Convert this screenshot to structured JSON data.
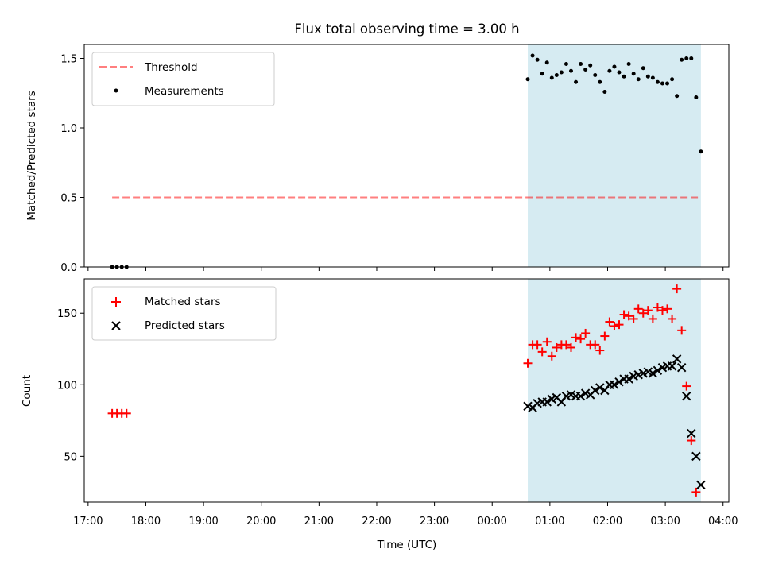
{
  "chart_data": [
    {
      "type": "scatter",
      "title": "Flux total observing time = 3.00 h",
      "xlabel": "",
      "ylabel": "Matched/Predicted stars",
      "ylim": [
        0,
        1.6
      ],
      "yticks": [
        "0.0",
        "0.5",
        "1.0",
        "1.5"
      ],
      "xlim": [
        "16:56",
        "04:06"
      ],
      "observing_window": [
        "00:37",
        "03:37"
      ],
      "observing_window_color": "#add8e6",
      "threshold": {
        "name": "Threshold",
        "y": 0.5,
        "x": [
          "17:25",
          "03:37"
        ],
        "color": "#ff0000"
      },
      "series": [
        {
          "name": "Measurements",
          "color": "#000000",
          "marker": "dot",
          "x": [
            "17:25",
            "17:30",
            "17:35",
            "17:40",
            "00:37",
            "00:42",
            "00:47",
            "00:52",
            "00:57",
            "01:02",
            "01:07",
            "01:12",
            "01:17",
            "01:22",
            "01:27",
            "01:32",
            "01:37",
            "01:42",
            "01:47",
            "01:52",
            "01:57",
            "02:02",
            "02:07",
            "02:12",
            "02:17",
            "02:22",
            "02:27",
            "02:32",
            "02:37",
            "02:42",
            "02:47",
            "02:52",
            "02:57",
            "03:02",
            "03:07",
            "03:12",
            "03:17",
            "03:22",
            "03:27",
            "03:32",
            "03:37"
          ],
          "y": [
            0,
            0,
            0,
            0,
            1.35,
            1.52,
            1.49,
            1.39,
            1.47,
            1.36,
            1.38,
            1.4,
            1.46,
            1.41,
            1.33,
            1.46,
            1.42,
            1.45,
            1.38,
            1.33,
            1.26,
            1.41,
            1.44,
            1.4,
            1.37,
            1.46,
            1.39,
            1.35,
            1.43,
            1.37,
            1.36,
            1.33,
            1.32,
            1.32,
            1.35,
            1.23,
            1.49,
            1.5,
            1.5,
            1.22,
            0.83
          ]
        }
      ],
      "legend": {
        "position": "top-left",
        "entries": [
          "Threshold",
          "Measurements"
        ]
      }
    },
    {
      "type": "scatter",
      "title": "",
      "xlabel": "Time (UTC)",
      "ylabel": "Count",
      "ylim": [
        18,
        174
      ],
      "yticks": [
        "50",
        "100",
        "150"
      ],
      "xlim": [
        "16:56",
        "04:06"
      ],
      "xticks": [
        "17:00",
        "18:00",
        "19:00",
        "20:00",
        "21:00",
        "22:00",
        "23:00",
        "00:00",
        "01:00",
        "02:00",
        "03:00",
        "04:00"
      ],
      "observing_window": [
        "00:37",
        "03:37"
      ],
      "observing_window_color": "#add8e6",
      "series": [
        {
          "name": "Matched stars",
          "color": "#ff0000",
          "marker": "plus",
          "x": [
            "17:25",
            "17:30",
            "17:35",
            "17:40",
            "00:37",
            "00:42",
            "00:47",
            "00:52",
            "00:57",
            "01:02",
            "01:07",
            "01:12",
            "01:17",
            "01:22",
            "01:27",
            "01:32",
            "01:37",
            "01:42",
            "01:47",
            "01:52",
            "01:57",
            "02:02",
            "02:07",
            "02:12",
            "02:17",
            "02:22",
            "02:27",
            "02:32",
            "02:37",
            "02:42",
            "02:47",
            "02:52",
            "02:57",
            "03:02",
            "03:07",
            "03:12",
            "03:17",
            "03:22",
            "03:27",
            "03:32",
            "03:37"
          ],
          "y": [
            80,
            80,
            80,
            80,
            115,
            128,
            128,
            123,
            130,
            120,
            126,
            128,
            128,
            126,
            133,
            132,
            136,
            128,
            128,
            124,
            134,
            144,
            141,
            142,
            149,
            148,
            146,
            153,
            150,
            152,
            146,
            154,
            152,
            153,
            146,
            167,
            138,
            99,
            61,
            25,
            null
          ]
        },
        {
          "name": "Predicted stars",
          "color": "#000000",
          "marker": "x",
          "x": [
            "00:37",
            "00:42",
            "00:47",
            "00:52",
            "00:57",
            "01:02",
            "01:07",
            "01:12",
            "01:17",
            "01:22",
            "01:27",
            "01:32",
            "01:37",
            "01:42",
            "01:47",
            "01:52",
            "01:57",
            "02:02",
            "02:07",
            "02:12",
            "02:17",
            "02:22",
            "02:27",
            "02:32",
            "02:37",
            "02:42",
            "02:47",
            "02:52",
            "02:57",
            "03:02",
            "03:07",
            "03:12",
            "03:17",
            "03:22",
            "03:27",
            "03:32",
            "03:37"
          ],
          "y": [
            85,
            84,
            87,
            88,
            88,
            90,
            91,
            88,
            92,
            93,
            92,
            92,
            94,
            93,
            96,
            98,
            96,
            100,
            100,
            102,
            104,
            104,
            106,
            107,
            108,
            109,
            108,
            110,
            112,
            113,
            113,
            118,
            112,
            92,
            66,
            50,
            30
          ]
        }
      ],
      "legend": {
        "position": "top-left",
        "entries": [
          "Matched stars",
          "Predicted stars"
        ]
      }
    }
  ]
}
